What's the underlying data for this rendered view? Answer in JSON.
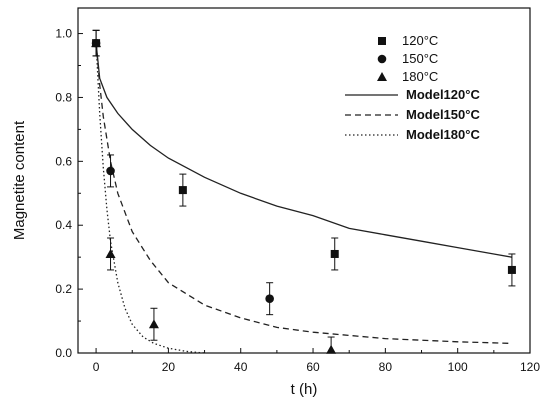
{
  "chart_data": {
    "type": "scatter",
    "xlabel": "t (h)",
    "ylabel": "Magnetite content",
    "xlim": [
      -5,
      120
    ],
    "ylim": [
      0,
      1.08
    ],
    "xticks": [
      0,
      20,
      40,
      60,
      80,
      100,
      120
    ],
    "yticks": [
      0.0,
      0.2,
      0.4,
      0.6,
      0.8,
      1.0
    ],
    "xtick_labels": [
      "0",
      "20",
      "40",
      "60",
      "80",
      "100",
      "120"
    ],
    "ytick_labels": [
      "0.0",
      "0.2",
      "0.4",
      "0.6",
      "0.8",
      "1.0"
    ],
    "grid": false,
    "legend_position": "top-right",
    "series": [
      {
        "name": "120°C",
        "marker": "square",
        "x": [
          0,
          24,
          66,
          115
        ],
        "y": [
          0.97,
          0.51,
          0.31,
          0.26
        ],
        "err": [
          0.04,
          0.05,
          0.05,
          0.05
        ]
      },
      {
        "name": "150°C",
        "marker": "circle",
        "x": [
          0,
          4,
          48
        ],
        "y": [
          0.97,
          0.57,
          0.17
        ],
        "err": [
          0.04,
          0.05,
          0.05
        ]
      },
      {
        "name": "180°C",
        "marker": "triangle",
        "x": [
          0,
          4,
          16,
          65
        ],
        "y": [
          0.97,
          0.31,
          0.09,
          0.01
        ],
        "err": [
          0.04,
          0.05,
          0.05,
          0.04
        ]
      }
    ],
    "models": [
      {
        "name": "Model120°C",
        "style": "solid",
        "x": [
          0,
          1,
          3,
          6,
          10,
          15,
          20,
          30,
          40,
          50,
          60,
          70,
          80,
          90,
          100,
          110,
          115
        ],
        "y": [
          0.97,
          0.86,
          0.8,
          0.75,
          0.7,
          0.65,
          0.61,
          0.55,
          0.5,
          0.46,
          0.43,
          0.39,
          0.37,
          0.35,
          0.33,
          0.31,
          0.3
        ]
      },
      {
        "name": "Model150°C",
        "style": "dashed",
        "x": [
          0,
          1,
          2,
          4,
          6,
          10,
          15,
          20,
          30,
          40,
          50,
          60,
          70,
          80,
          90,
          100,
          115
        ],
        "y": [
          0.97,
          0.84,
          0.74,
          0.6,
          0.5,
          0.38,
          0.29,
          0.22,
          0.15,
          0.11,
          0.08,
          0.065,
          0.055,
          0.045,
          0.04,
          0.035,
          0.03
        ]
      },
      {
        "name": "Model180°C",
        "style": "dotted",
        "x": [
          0,
          1,
          2,
          3,
          4,
          6,
          8,
          10,
          13,
          16,
          20,
          25,
          30
        ],
        "y": [
          0.97,
          0.75,
          0.58,
          0.45,
          0.35,
          0.22,
          0.14,
          0.09,
          0.05,
          0.03,
          0.015,
          0.005,
          0.0
        ]
      }
    ]
  }
}
